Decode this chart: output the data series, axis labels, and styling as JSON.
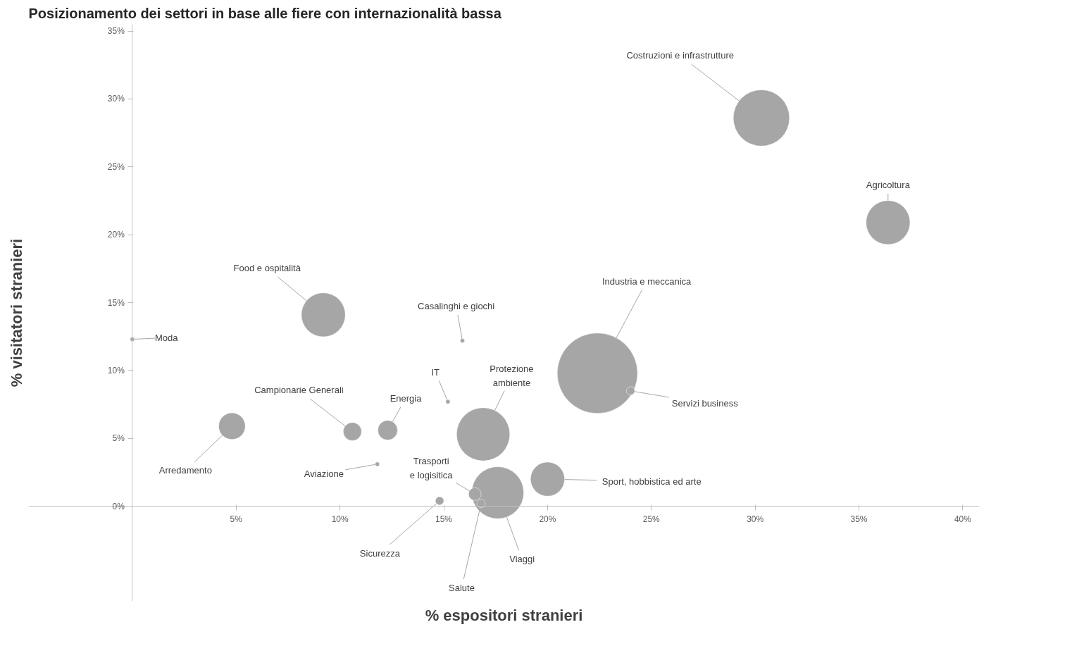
{
  "chart_data": {
    "type": "bubble",
    "title": "Posizionamento dei settori in base alle fiere con internazionalità bassa",
    "xlabel": "% espositori stranieri",
    "ylabel": "% visitatori stranieri",
    "x": [
      30.3,
      36.4,
      9.2,
      0,
      22.4,
      24.0,
      15.2,
      15.9,
      10.6,
      12.3,
      4.8,
      11.8,
      16.9,
      20.0,
      17.6,
      16.5,
      14.8,
      16.8
    ],
    "values": [
      28.6,
      20.9,
      14.1,
      12.3,
      9.8,
      8.5,
      7.7,
      12.2,
      5.5,
      5.6,
      5.9,
      3.1,
      5.3,
      2.0,
      1.0,
      0.9,
      0.4,
      0.2
    ],
    "sizes": [
      0.49,
      0.3,
      0.3,
      0.003,
      1,
      0.011,
      0.003,
      0.003,
      0.052,
      0.06,
      0.11,
      0.003,
      0.44,
      0.18,
      0.42,
      0.025,
      0.011,
      0.011
    ],
    "color": "#a6a6a6",
    "annotations": [
      {
        "text": "Costruzioni e infrastrutture",
        "x": 30.3,
        "y": 28.6
      },
      {
        "text": "Agricoltura",
        "x": 36.4,
        "y": 20.9
      },
      {
        "text": "Food e ospitalità",
        "x": 9.2,
        "y": 14.1
      },
      {
        "text": "Moda",
        "x": 0,
        "y": 12.3
      },
      {
        "text": "Industria e meccanica",
        "x": 22.4,
        "y": 9.8
      },
      {
        "text": "Servizi business",
        "x": 24.0,
        "y": 8.5
      },
      {
        "text": "IT",
        "x": 15.2,
        "y": 7.7
      },
      {
        "text": "Casalinghi e giochi",
        "x": 15.9,
        "y": 12.2
      },
      {
        "text": "Campionarie Generali",
        "x": 10.6,
        "y": 5.5
      },
      {
        "text": "Energia",
        "x": 12.3,
        "y": 5.6
      },
      {
        "text": "Arredamento",
        "x": 4.8,
        "y": 5.9
      },
      {
        "text": "Aviazione",
        "x": 11.8,
        "y": 3.1
      },
      {
        "text": "Protezione\nambiente",
        "x": 16.9,
        "y": 5.3
      },
      {
        "text": "Sport, hobbistica ed arte",
        "x": 20.0,
        "y": 2.0
      },
      {
        "text": "Viaggi",
        "x": 17.6,
        "y": 1.0
      },
      {
        "text": "Trasporti\ne logisitica",
        "x": 16.5,
        "y": 0.9
      },
      {
        "text": "Sicurezza",
        "x": 14.8,
        "y": 0.4
      },
      {
        "text": "Salute",
        "x": 16.8,
        "y": 0.2
      }
    ],
    "xlim": [
      -5,
      40.8
    ],
    "ylim": [
      -7,
      35.5
    ],
    "xticks": [
      {
        "value": 5,
        "label": "5%"
      },
      {
        "value": 10,
        "label": "10%"
      },
      {
        "value": 15,
        "label": "15%"
      },
      {
        "value": 20,
        "label": "20%"
      },
      {
        "value": 25,
        "label": "25%"
      },
      {
        "value": 30,
        "label": "30%"
      },
      {
        "value": 35,
        "label": "35%"
      },
      {
        "value": 40,
        "label": "40%"
      }
    ],
    "yticks": [
      {
        "value": 0,
        "label": "0%"
      },
      {
        "value": 5,
        "label": "5%"
      },
      {
        "value": 10,
        "label": "10%"
      },
      {
        "value": 15,
        "label": "15%"
      },
      {
        "value": 20,
        "label": "20%"
      },
      {
        "value": 25,
        "label": "25%"
      },
      {
        "value": 30,
        "label": "30%"
      },
      {
        "value": 35,
        "label": "35%"
      }
    ],
    "grid": false
  }
}
